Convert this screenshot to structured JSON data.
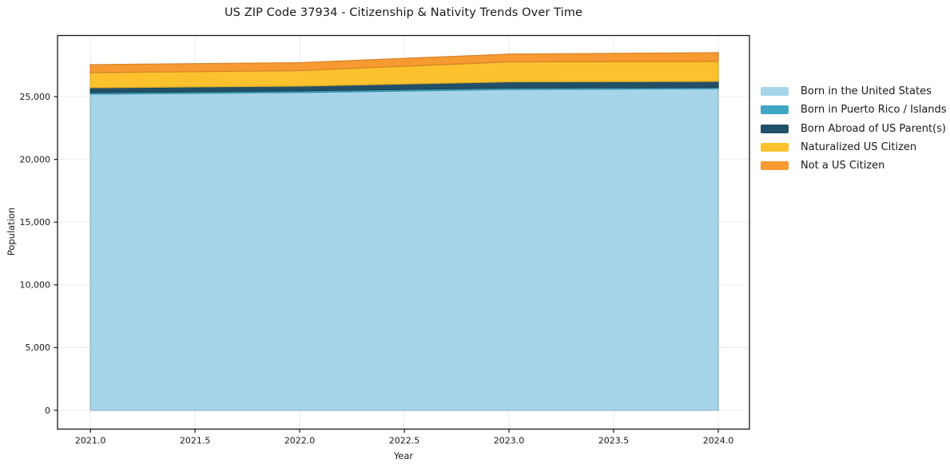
{
  "chart_data": {
    "type": "area",
    "stacked": true,
    "title": "US ZIP Code 37934 - Citizenship & Nativity Trends Over Time",
    "xlabel": "Year",
    "ylabel": "Population",
    "x": [
      2021,
      2022,
      2023,
      2024
    ],
    "series": [
      {
        "name": "Born in the United States",
        "color": "#A6D4E8",
        "values": [
          25200,
          25330,
          25570,
          25630
        ]
      },
      {
        "name": "Born in Puerto Rico / Islands",
        "color": "#3FA7C5",
        "values": [
          120,
          130,
          120,
          110
        ]
      },
      {
        "name": "Born Abroad of US Parent(s)",
        "color": "#215068",
        "values": [
          390,
          380,
          490,
          480
        ]
      },
      {
        "name": "Naturalized US Citizen",
        "color": "#FCC22D",
        "values": [
          1200,
          1230,
          1590,
          1590
        ]
      },
      {
        "name": "Not a US Citizen",
        "color": "#F79A31",
        "values": [
          640,
          640,
          620,
          700
        ]
      }
    ],
    "stacked_totals": [
      27550,
      27710,
      28390,
      28510
    ],
    "xticks": [
      2021.0,
      2021.5,
      2022.0,
      2022.5,
      2023.0,
      2023.5,
      2024.0
    ],
    "xtick_labels": [
      "2021.0",
      "2021.5",
      "2022.0",
      "2022.5",
      "2023.0",
      "2023.5",
      "2024.0"
    ],
    "yticks": [
      0,
      5000,
      10000,
      15000,
      20000,
      25000
    ],
    "ytick_labels": [
      "0",
      "5,000",
      "10,000",
      "15,000",
      "20,000",
      "25,000"
    ],
    "xlim": [
      2020.843,
      2024.149
    ],
    "ylim": [
      -1495,
      29870
    ],
    "grid": true,
    "grid_color": "#ececec",
    "spine_color": "#1a1a1a",
    "text_color": "#1a1a1a",
    "legend_position": "right-outside"
  }
}
